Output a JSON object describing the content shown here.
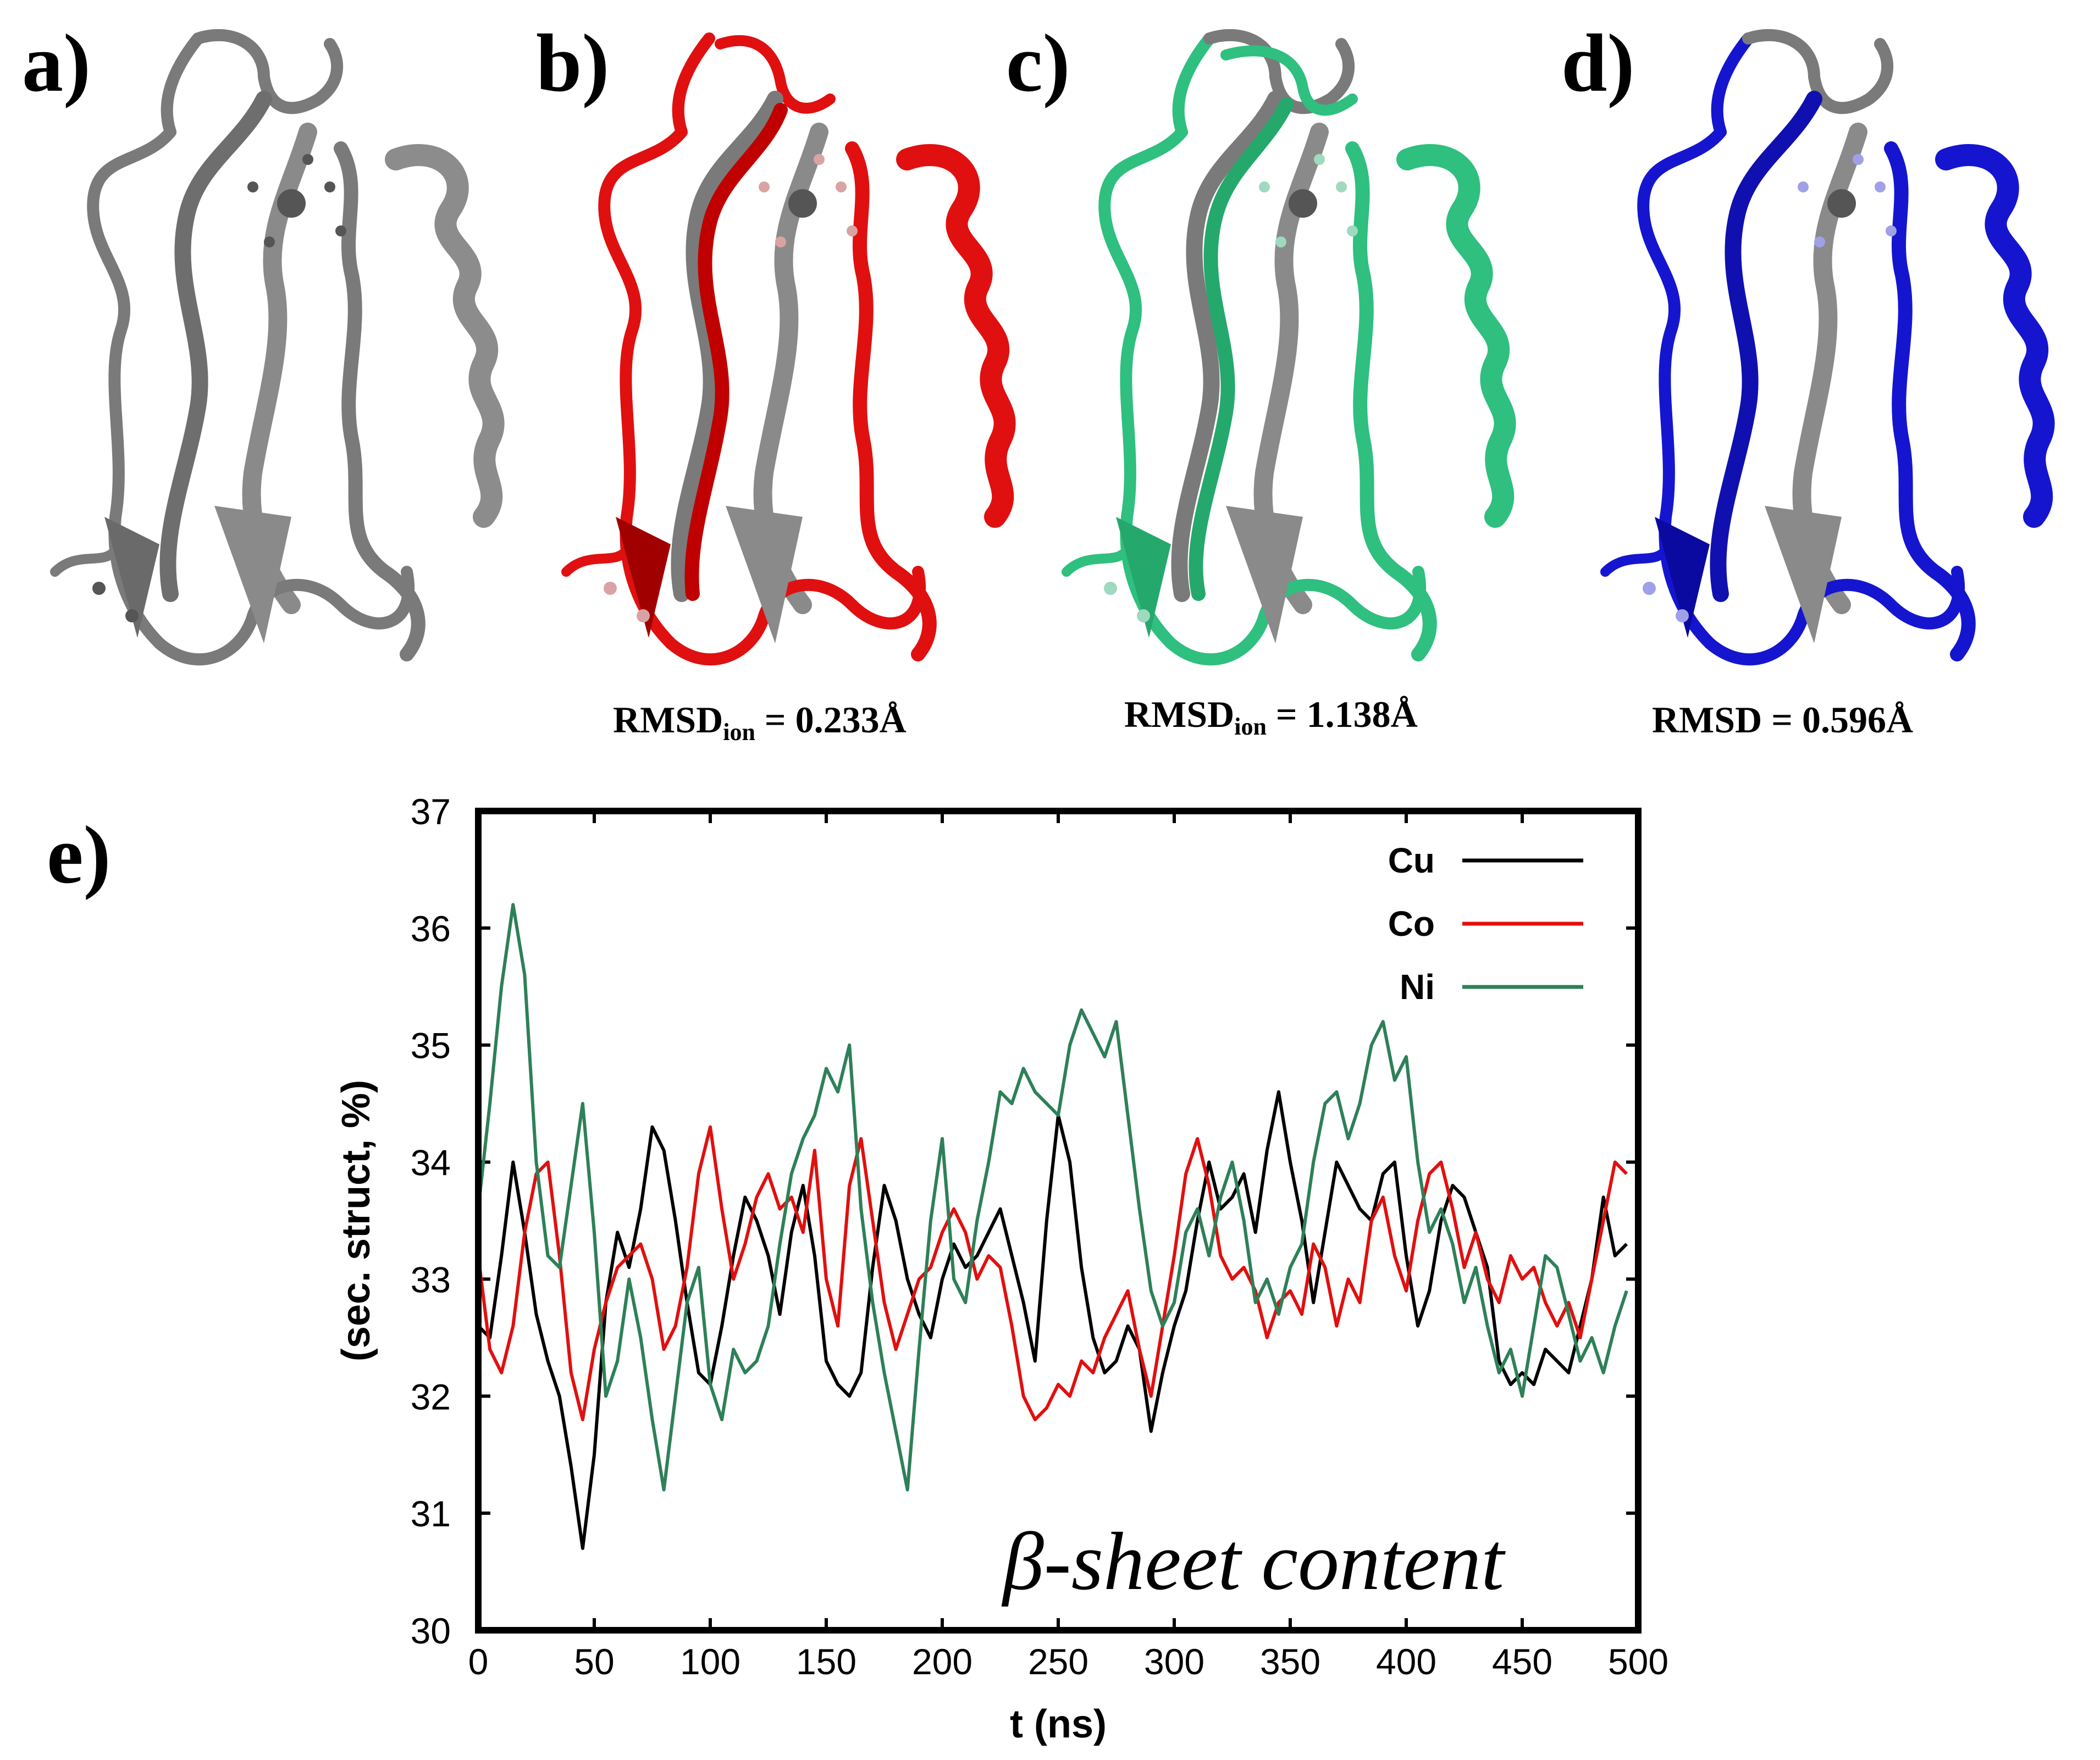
{
  "panels": {
    "a": {
      "label": "a)"
    },
    "b": {
      "label": "b)",
      "rmsd_prefix": "RMSD",
      "rmsd_sub": "ion",
      "rmsd_value": " = 0.233Å",
      "color": "#e01010"
    },
    "c": {
      "label": "c)",
      "rmsd_prefix": "RMSD",
      "rmsd_sub": "ion",
      "rmsd_value": " = 1.138Å",
      "color": "#2fbf7f"
    },
    "d": {
      "label": "d)",
      "rmsd_text": "RMSD = 0.596Å",
      "color": "#1515d0"
    },
    "e": {
      "label": "e)"
    }
  },
  "colors": {
    "reference": "#7a7a7a"
  },
  "chart_data": {
    "type": "line",
    "xlabel": "t (ns)",
    "ylabel": "(sec. struct, %)",
    "annotation": "β-sheet content",
    "xlim": [
      0,
      500
    ],
    "ylim": [
      30,
      37
    ],
    "xticks": [
      0,
      50,
      100,
      150,
      200,
      250,
      300,
      350,
      400,
      450,
      500
    ],
    "yticks": [
      30,
      31,
      32,
      33,
      34,
      35,
      36,
      37
    ],
    "legend": "top-right",
    "grid": false,
    "series": [
      {
        "name": "Cu",
        "color": "#000000",
        "x": [
          0,
          5,
          10,
          15,
          20,
          25,
          30,
          35,
          40,
          45,
          50,
          55,
          60,
          65,
          70,
          75,
          80,
          85,
          90,
          95,
          100,
          105,
          110,
          115,
          120,
          125,
          130,
          135,
          140,
          145,
          150,
          155,
          160,
          165,
          170,
          175,
          180,
          185,
          190,
          195,
          200,
          205,
          210,
          215,
          220,
          225,
          230,
          235,
          240,
          245,
          250,
          255,
          260,
          265,
          270,
          275,
          280,
          285,
          290,
          295,
          300,
          305,
          310,
          315,
          320,
          325,
          330,
          335,
          340,
          345,
          350,
          355,
          360,
          365,
          370,
          375,
          380,
          385,
          390,
          395,
          400,
          405,
          410,
          415,
          420,
          425,
          430,
          435,
          440,
          445,
          450,
          455,
          460,
          465,
          470,
          475,
          480,
          485,
          490,
          495
        ],
        "y": [
          32.6,
          32.5,
          33.2,
          34.0,
          33.4,
          32.7,
          32.3,
          32.0,
          31.4,
          30.7,
          31.5,
          32.8,
          33.4,
          33.1,
          33.6,
          34.3,
          34.1,
          33.5,
          32.8,
          32.2,
          32.1,
          32.6,
          33.2,
          33.7,
          33.5,
          33.2,
          32.7,
          33.4,
          33.8,
          33.2,
          32.3,
          32.1,
          32.0,
          32.2,
          33.1,
          33.8,
          33.5,
          33.0,
          32.7,
          32.5,
          33.0,
          33.3,
          33.1,
          33.2,
          33.4,
          33.6,
          33.2,
          32.8,
          32.3,
          33.5,
          34.4,
          34.0,
          33.1,
          32.5,
          32.2,
          32.3,
          32.6,
          32.4,
          31.7,
          32.2,
          32.6,
          32.9,
          33.5,
          34.0,
          33.6,
          33.7,
          33.9,
          33.4,
          34.1,
          34.6,
          34.0,
          33.5,
          32.8,
          33.4,
          34.0,
          33.8,
          33.6,
          33.5,
          33.9,
          34.0,
          33.2,
          32.6,
          32.9,
          33.5,
          33.8,
          33.7,
          33.4,
          33.1,
          32.3,
          32.1,
          32.2,
          32.1,
          32.4,
          32.3,
          32.2,
          32.6,
          33.0,
          33.7,
          33.2,
          33.3
        ]
      },
      {
        "name": "Co",
        "color": "#e0100f",
        "x": [
          0,
          5,
          10,
          15,
          20,
          25,
          30,
          35,
          40,
          45,
          50,
          55,
          60,
          65,
          70,
          75,
          80,
          85,
          90,
          95,
          100,
          105,
          110,
          115,
          120,
          125,
          130,
          135,
          140,
          145,
          150,
          155,
          160,
          165,
          170,
          175,
          180,
          185,
          190,
          195,
          200,
          205,
          210,
          215,
          220,
          225,
          230,
          235,
          240,
          245,
          250,
          255,
          260,
          265,
          270,
          275,
          280,
          285,
          290,
          295,
          300,
          305,
          310,
          315,
          320,
          325,
          330,
          335,
          340,
          345,
          350,
          355,
          360,
          365,
          370,
          375,
          380,
          385,
          390,
          395,
          400,
          405,
          410,
          415,
          420,
          425,
          430,
          435,
          440,
          445,
          450,
          455,
          460,
          465,
          470,
          475,
          480,
          485,
          490,
          495
        ],
        "y": [
          33.2,
          32.4,
          32.2,
          32.6,
          33.4,
          33.9,
          34.0,
          33.2,
          32.2,
          31.8,
          32.4,
          32.8,
          33.1,
          33.2,
          33.3,
          33.0,
          32.4,
          32.6,
          33.1,
          33.9,
          34.3,
          33.6,
          33.0,
          33.3,
          33.7,
          33.9,
          33.6,
          33.7,
          33.4,
          34.1,
          33.0,
          32.6,
          33.8,
          34.2,
          33.5,
          32.8,
          32.4,
          32.7,
          33.0,
          33.1,
          33.4,
          33.6,
          33.4,
          33.0,
          33.2,
          33.1,
          32.6,
          32.0,
          31.8,
          31.9,
          32.1,
          32.0,
          32.3,
          32.2,
          32.5,
          32.7,
          32.9,
          32.4,
          32.0,
          32.6,
          33.2,
          33.9,
          34.2,
          33.8,
          33.2,
          33.0,
          33.1,
          32.9,
          32.5,
          32.8,
          32.9,
          32.7,
          33.3,
          33.1,
          32.6,
          33.0,
          32.8,
          33.5,
          33.7,
          33.2,
          32.9,
          33.5,
          33.9,
          34.0,
          33.6,
          33.1,
          33.4,
          33.0,
          32.8,
          33.2,
          33.0,
          33.1,
          32.8,
          32.6,
          32.8,
          32.5,
          33.0,
          33.5,
          34.0,
          33.9
        ]
      },
      {
        "name": "Ni",
        "color": "#2e8058",
        "x": [
          0,
          5,
          10,
          15,
          20,
          25,
          30,
          35,
          40,
          45,
          50,
          55,
          60,
          65,
          70,
          75,
          80,
          85,
          90,
          95,
          100,
          105,
          110,
          115,
          120,
          125,
          130,
          135,
          140,
          145,
          150,
          155,
          160,
          165,
          170,
          175,
          180,
          185,
          190,
          195,
          200,
          205,
          210,
          215,
          220,
          225,
          230,
          235,
          240,
          245,
          250,
          255,
          260,
          265,
          270,
          275,
          280,
          285,
          290,
          295,
          300,
          305,
          310,
          315,
          320,
          325,
          330,
          335,
          340,
          345,
          350,
          355,
          360,
          365,
          370,
          375,
          380,
          385,
          390,
          395,
          400,
          405,
          410,
          415,
          420,
          425,
          430,
          435,
          440,
          445,
          450,
          455,
          460,
          465,
          470,
          475,
          480,
          485,
          490,
          495
        ],
        "y": [
          33.6,
          34.5,
          35.5,
          36.2,
          35.6,
          34.0,
          33.2,
          33.1,
          33.8,
          34.5,
          33.4,
          32.0,
          32.3,
          33.0,
          32.5,
          31.8,
          31.2,
          32.0,
          32.8,
          33.1,
          32.1,
          31.8,
          32.4,
          32.2,
          32.3,
          32.6,
          33.3,
          33.9,
          34.2,
          34.4,
          34.8,
          34.6,
          35.0,
          33.6,
          32.8,
          32.2,
          31.7,
          31.2,
          32.4,
          33.5,
          34.2,
          33.0,
          32.8,
          33.5,
          34.0,
          34.6,
          34.5,
          34.8,
          34.6,
          34.5,
          34.4,
          35.0,
          35.3,
          35.1,
          34.9,
          35.2,
          34.4,
          33.6,
          32.9,
          32.6,
          32.8,
          33.4,
          33.6,
          33.2,
          33.7,
          34.0,
          33.5,
          32.8,
          33.0,
          32.7,
          33.1,
          33.3,
          34.0,
          34.5,
          34.6,
          34.2,
          34.5,
          35.0,
          35.2,
          34.7,
          34.9,
          34.0,
          33.4,
          33.6,
          33.3,
          32.8,
          33.1,
          32.6,
          32.2,
          32.4,
          32.0,
          32.6,
          33.2,
          33.1,
          32.7,
          32.3,
          32.5,
          32.2,
          32.6,
          32.9
        ]
      }
    ]
  }
}
